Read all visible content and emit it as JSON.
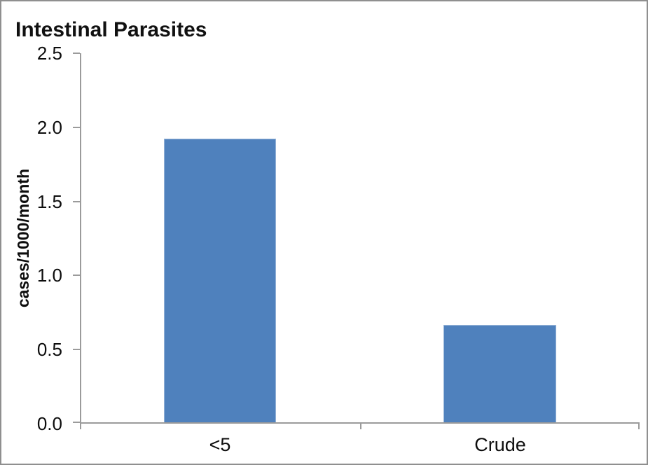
{
  "window": {
    "frame_color": "#8f8f8f",
    "background": "#ffffff"
  },
  "chart_data": {
    "type": "bar",
    "title": "Intestinal Parasites",
    "xlabel": "",
    "ylabel": "cases/1000/month",
    "categories": [
      "<5",
      "Crude"
    ],
    "values": [
      1.92,
      0.66
    ],
    "ylim": [
      0,
      2.5
    ],
    "ytick_step": 0.5,
    "ytick_labels": [
      "2.5",
      "2.0",
      "1.5",
      "1.0",
      "0.5",
      "0.0"
    ],
    "grid": false,
    "legend_position": "none",
    "bar_color": "#4f81bd",
    "bar_border_color": "#95b3d7",
    "axis_color": "#9b9b9b",
    "text_color": "#0d0d0d"
  }
}
